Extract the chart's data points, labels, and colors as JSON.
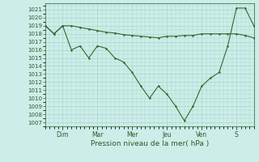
{
  "title": "",
  "xlabel": "Pression niveau de la mer( hPa )",
  "background_color": "#cceee8",
  "line_color": "#2d6b2d",
  "grid_color": "#aad4cc",
  "text_color": "#2d5a2d",
  "ylim": [
    1006.5,
    1021.8
  ],
  "yticks": [
    1007,
    1008,
    1009,
    1010,
    1011,
    1012,
    1013,
    1014,
    1015,
    1016,
    1017,
    1018,
    1019,
    1020,
    1021
  ],
  "day_labels": [
    "Dim",
    "Mar",
    "Mer",
    "Jeu",
    "Ven",
    "S"
  ],
  "day_positions": [
    24,
    72,
    120,
    168,
    216,
    264
  ],
  "xlim": [
    0,
    288
  ],
  "series1_x": [
    0,
    12,
    24,
    36,
    48,
    60,
    72,
    84,
    96,
    108,
    120,
    132,
    144,
    156,
    168,
    180,
    192,
    204,
    216,
    228,
    240,
    252,
    264,
    276,
    288
  ],
  "series1_y": [
    1019.0,
    1018.0,
    1019.0,
    1019.0,
    1018.8,
    1018.6,
    1018.4,
    1018.2,
    1018.1,
    1017.9,
    1017.8,
    1017.7,
    1017.6,
    1017.5,
    1017.7,
    1017.7,
    1017.8,
    1017.8,
    1018.0,
    1018.0,
    1018.0,
    1018.0,
    1018.0,
    1017.8,
    1017.5
  ],
  "series2_x": [
    0,
    12,
    24,
    36,
    48,
    60,
    72,
    84,
    96,
    108,
    120,
    132,
    144,
    156,
    168,
    180,
    192,
    204,
    216,
    228,
    240,
    252,
    264,
    276,
    288
  ],
  "series2_y": [
    1019.0,
    1018.0,
    1019.0,
    1016.0,
    1016.5,
    1015.0,
    1016.5,
    1016.2,
    1015.0,
    1014.5,
    1013.2,
    1011.5,
    1010.0,
    1011.5,
    1010.5,
    1009.0,
    1007.2,
    1009.0,
    1011.5,
    1012.5,
    1013.2,
    1016.5,
    1021.2,
    1021.2,
    1019.0
  ]
}
